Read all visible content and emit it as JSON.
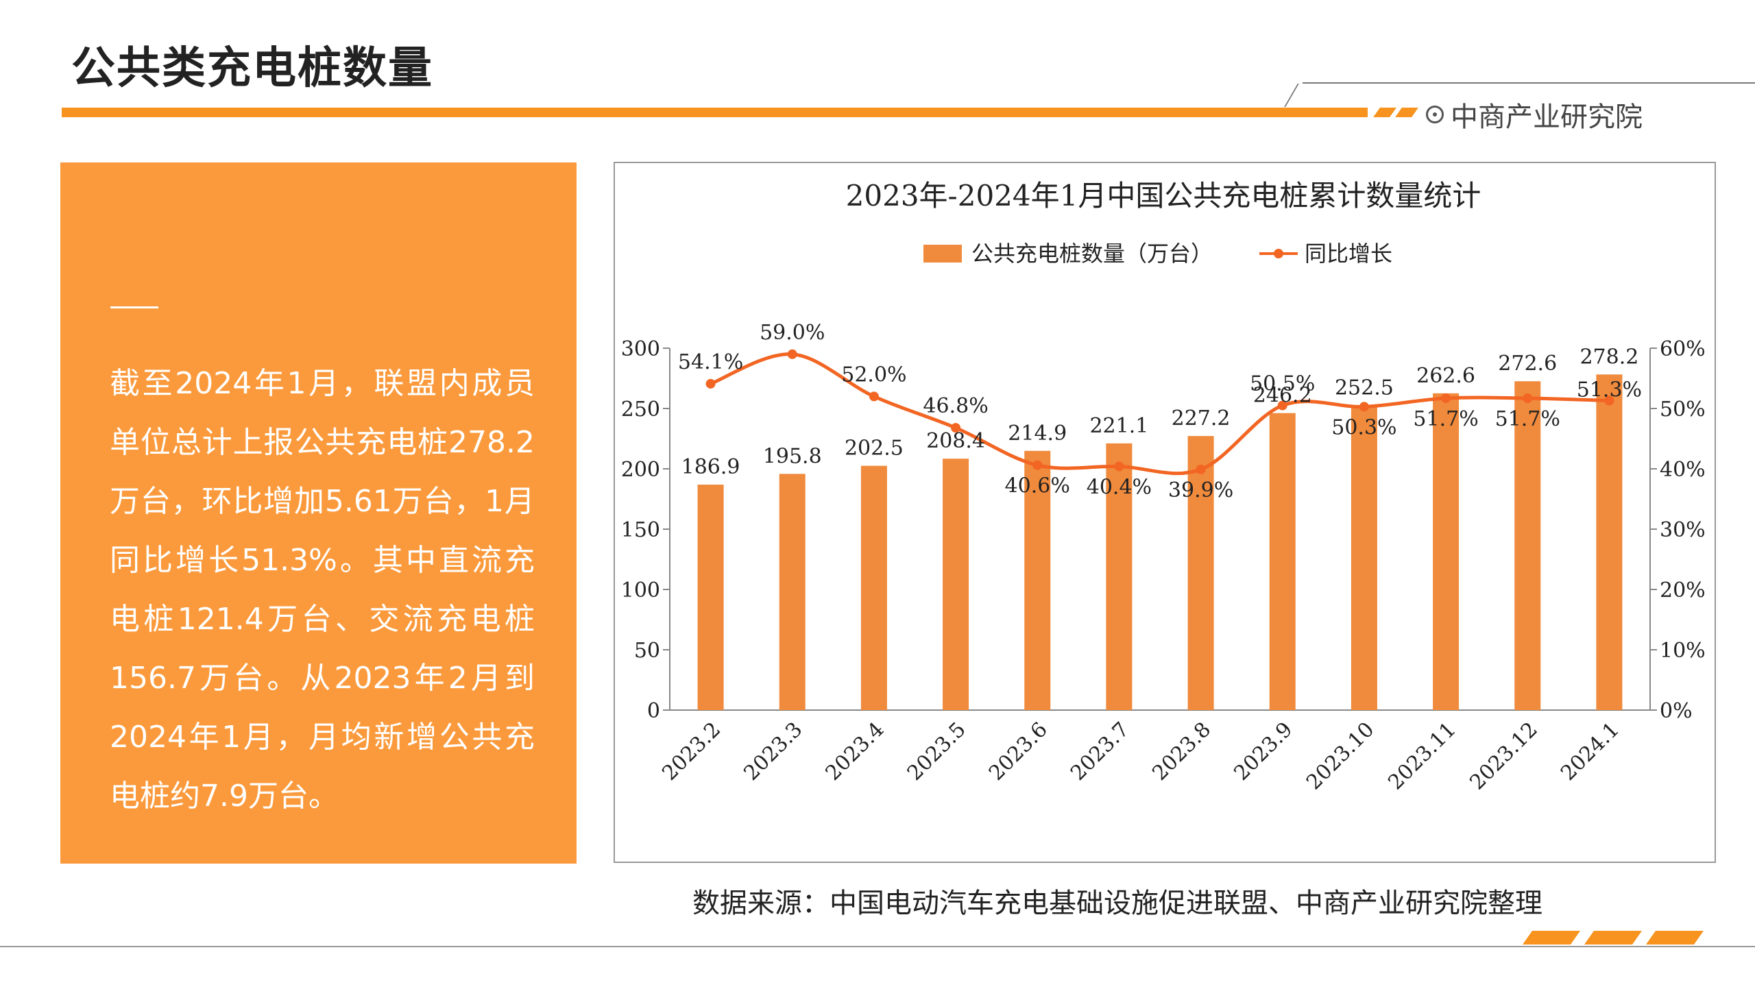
{
  "page": {
    "title": "公共类充电桩数量",
    "brand": "中商产业研究院",
    "summary": "截至2024年1月，联盟内成员单位总计上报公共充电桩278.2万台，环比增加5.61万台，1月同比增长51.3%。其中直流充电桩121.4万台、交流充电桩156.7万台。从2023年2月到2024年1月，月均新增公共充电桩约7.9万台。",
    "source": "数据来源：中国电动汽车充电基础设施促进联盟、中商产业研究院整理",
    "icons": {
      "brand": "target-logo-icon"
    },
    "colors": {
      "accent": "#f7931e",
      "panel": "#fb9a3c",
      "bar": "#f08a3c",
      "line": "#f26522"
    }
  },
  "chart_data": {
    "type": "bar",
    "title": "2023年-2024年1月中国公共充电桩累计数量统计",
    "categories": [
      "2023.2",
      "2023.3",
      "2023.4",
      "2023.5",
      "2023.6",
      "2023.7",
      "2023.8",
      "2023.9",
      "2023.10",
      "2023.11",
      "2023.12",
      "2024.1"
    ],
    "series": [
      {
        "name": "公共充电桩数量（万台）",
        "type": "bar",
        "axis": "left",
        "values": [
          186.9,
          195.8,
          202.5,
          208.4,
          214.9,
          221.1,
          227.2,
          246.2,
          252.5,
          262.6,
          272.6,
          278.2
        ],
        "labels": [
          "186.9",
          "195.8",
          "202.5",
          "208.4",
          "214.9",
          "221.1",
          "227.2",
          "246.2",
          "252.5",
          "262.6",
          "272.6",
          "278.2"
        ]
      },
      {
        "name": "同比增长",
        "type": "line",
        "axis": "right",
        "values": [
          54.1,
          59.0,
          52.0,
          46.8,
          40.6,
          40.4,
          39.9,
          50.5,
          50.3,
          51.7,
          51.7,
          51.3
        ],
        "labels": [
          "54.1%",
          "59.0%",
          "52.0%",
          "46.8%",
          "40.6%",
          "40.4%",
          "39.9%",
          "50.5%",
          "50.3%",
          "51.7%",
          "51.7%",
          "51.3%"
        ]
      }
    ],
    "y_left": {
      "min": 0,
      "max": 300,
      "ticks": [
        "0",
        "50",
        "100",
        "150",
        "200",
        "250",
        "300"
      ]
    },
    "y_right": {
      "min": 0,
      "max": 60,
      "ticks": [
        "0%",
        "10%",
        "20%",
        "30%",
        "40%",
        "50%",
        "60%"
      ]
    },
    "grid": false,
    "legend": "top-center"
  }
}
